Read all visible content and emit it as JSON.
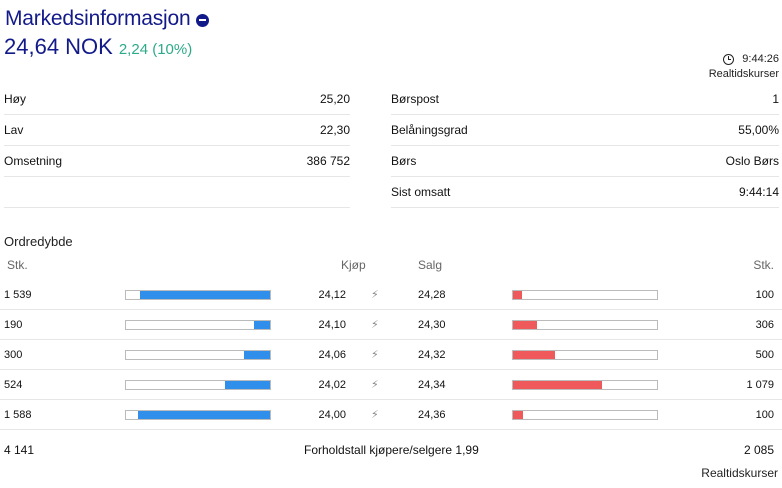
{
  "header": {
    "title": "Markedsinformasjon",
    "price": "24,64 NOK",
    "change": "2,24 (10%)",
    "colors": {
      "title": "#121a8a",
      "positive": "#2eaa8a"
    }
  },
  "realtime_top": {
    "time": "9:44:26",
    "label": "Realtidskurser"
  },
  "stats": {
    "left": [
      {
        "label": "Høy",
        "value": "25,20"
      },
      {
        "label": "Lav",
        "value": "22,30"
      },
      {
        "label": "Omsetning",
        "value": "386 752"
      }
    ],
    "right": [
      {
        "label": "Børspost",
        "value": "1"
      },
      {
        "label": "Belåningsgrad",
        "value": "55,00%"
      },
      {
        "label": "Børs",
        "value": "Oslo Børs"
      },
      {
        "label": "Sist omsatt",
        "value": "9:44:14"
      }
    ]
  },
  "orderbook": {
    "title": "Ordredybde",
    "headers": {
      "buy_qty": "Stk.",
      "buy_price": "Kjøp",
      "sell_price": "Salg",
      "sell_qty": "Stk."
    },
    "rows": [
      {
        "buy_qty": "1 539",
        "buy_price": "24,12",
        "sell_price": "24,28",
        "sell_qty": "100",
        "buy_level": 0.9,
        "sell_level": 0.06
      },
      {
        "buy_qty": "190",
        "buy_price": "24,10",
        "sell_price": "24,30",
        "sell_qty": "306",
        "buy_level": 0.11,
        "sell_level": 0.17
      },
      {
        "buy_qty": "300",
        "buy_price": "24,06",
        "sell_price": "24,32",
        "sell_qty": "500",
        "buy_level": 0.18,
        "sell_level": 0.29
      },
      {
        "buy_qty": "524",
        "buy_price": "24,02",
        "sell_price": "24,34",
        "sell_qty": "1 079",
        "buy_level": 0.31,
        "sell_level": 0.62
      },
      {
        "buy_qty": "1 588",
        "buy_price": "24,00",
        "sell_price": "24,36",
        "sell_qty": "100",
        "buy_level": 0.92,
        "sell_level": 0.07
      }
    ],
    "footer": {
      "buy_total": "4 141",
      "ratio": "Forholdstall kjøpere/selgere 1,99",
      "sell_total": "2 085"
    },
    "colors": {
      "buy": "#2f8fea",
      "sell": "#f0595b"
    }
  },
  "realtime_bottom": {
    "label": "Realtidskurser"
  }
}
